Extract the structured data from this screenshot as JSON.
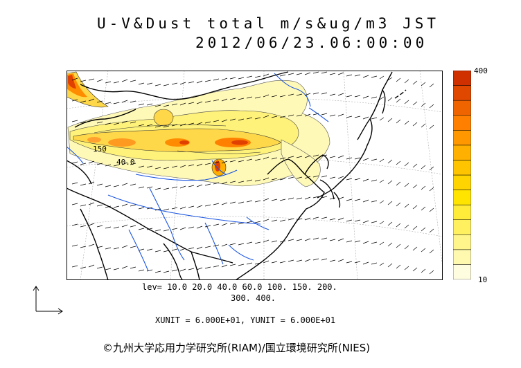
{
  "header": {
    "title_line1": "U-V&Dust total m/s&ug/m3 JST",
    "title_line2": "2012/06/23.06:00:00"
  },
  "colorbar": {
    "max_label": "400",
    "min_label": "10",
    "colors": [
      "#fffde0",
      "#fff9b0",
      "#fff58a",
      "#fff060",
      "#ffec3a",
      "#ffe400",
      "#ffd400",
      "#ffc400",
      "#ffb000",
      "#ff9800",
      "#ff8000",
      "#f06400",
      "#e04800",
      "#d03000"
    ]
  },
  "map_labels": {
    "contour_150": "150",
    "contour_40": "40.0"
  },
  "legend": {
    "levels_line1": "lev= 10.0 20.0 40.0 60.0 100. 150. 200.",
    "levels_line2": "300. 400."
  },
  "units": {
    "text": "XUNIT = 6.000E+01, YUNIT = 6.000E+01"
  },
  "credit": {
    "text": "©九州大学応用力学研究所(RIAM)/国立環境研究所(NIES)"
  },
  "colors": {
    "dust_light": "#fff9b8",
    "dust_mid": "#ffd400",
    "dust_orange": "#ff8c00",
    "dust_red": "#e04000",
    "river": "#1a55e0",
    "coast": "#000000",
    "grid": "#999999"
  }
}
